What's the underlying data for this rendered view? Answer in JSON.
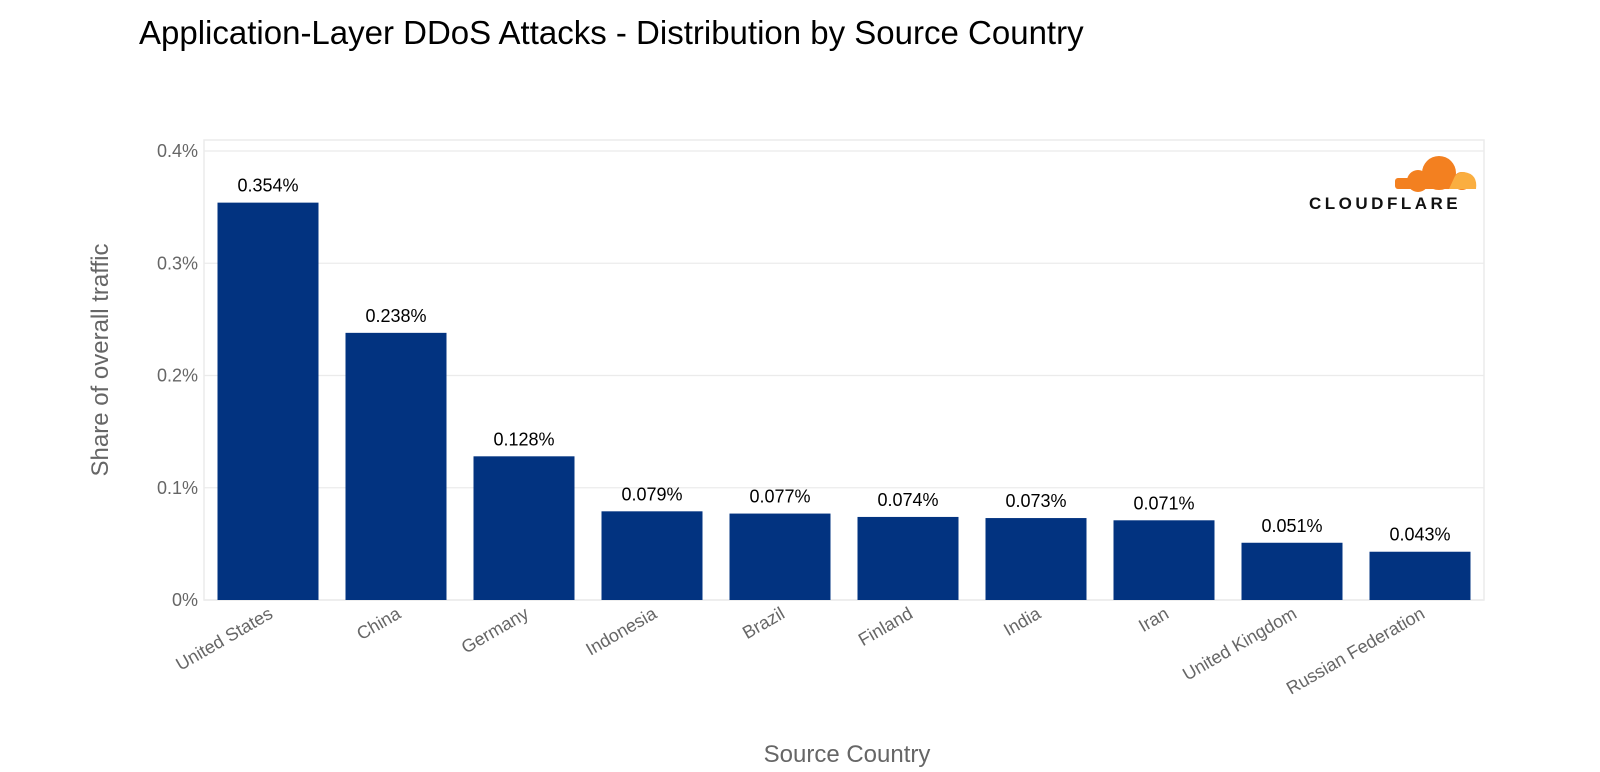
{
  "brand": {
    "name": "CLOUDFLARE",
    "logo_color": "#f38020",
    "logo_color_light": "#faae40"
  },
  "chart_data": {
    "type": "bar",
    "title": "Application-Layer DDoS Attacks - Distribution by Source Country",
    "xlabel": "Source Country",
    "ylabel": "Share of overall traffic",
    "categories": [
      "United States",
      "China",
      "Germany",
      "Indonesia",
      "Brazil",
      "Finland",
      "India",
      "Iran",
      "United Kingdom",
      "Russian Federation"
    ],
    "values": [
      0.354,
      0.238,
      0.128,
      0.079,
      0.077,
      0.074,
      0.073,
      0.071,
      0.051,
      0.043
    ],
    "value_labels": [
      "0.354%",
      "0.238%",
      "0.128%",
      "0.079%",
      "0.077%",
      "0.074%",
      "0.073%",
      "0.071%",
      "0.051%",
      "0.043%"
    ],
    "ylim": [
      0,
      0.4
    ],
    "yticks": [
      0,
      0.1,
      0.2,
      0.3,
      0.4
    ],
    "ytick_labels": [
      "0%",
      "0.1%",
      "0.2%",
      "0.3%",
      "0.4%"
    ],
    "bar_color": "#023380",
    "grid": true,
    "legend": "none"
  }
}
